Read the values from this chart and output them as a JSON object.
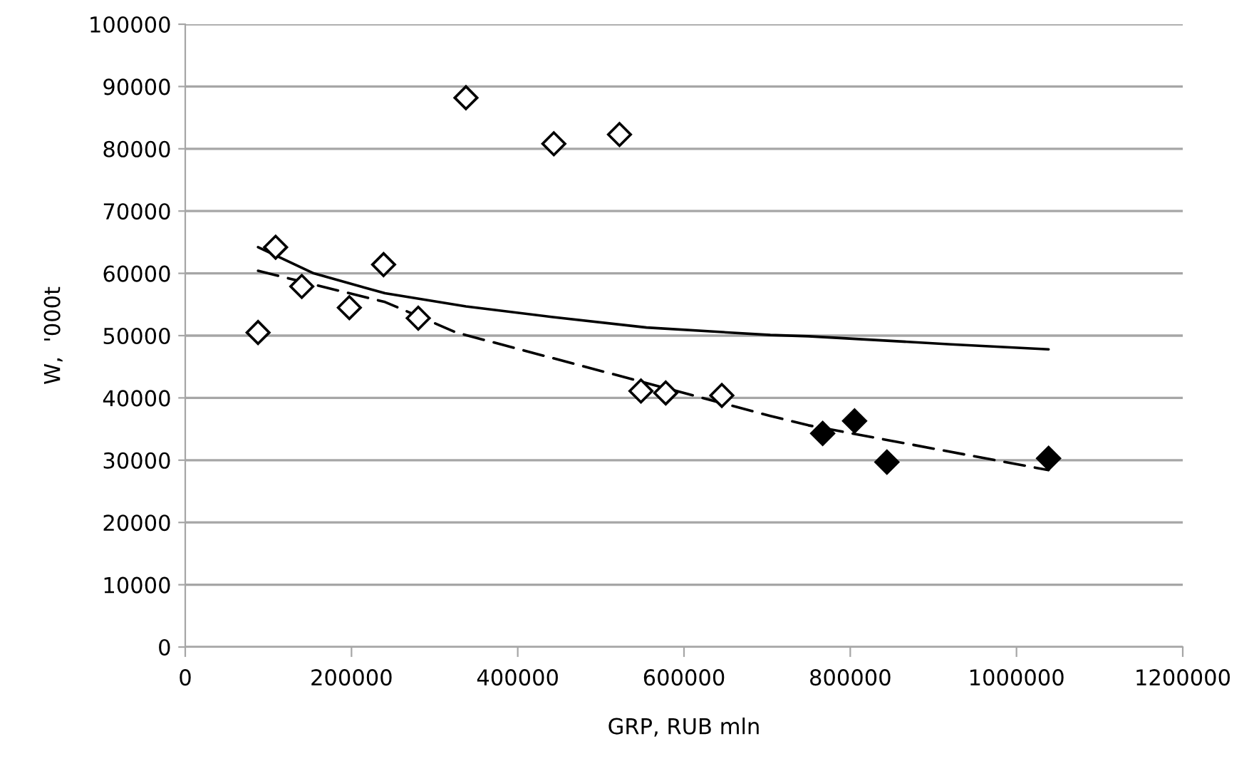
{
  "chart_data": {
    "type": "scatter",
    "xlabel": "GRP, RUB mln",
    "ylabel": "W,  '000t",
    "xlim": [
      0,
      1200000
    ],
    "ylim": [
      0,
      100000
    ],
    "xticks": [
      0,
      200000,
      400000,
      600000,
      800000,
      1000000,
      1200000
    ],
    "yticks": [
      0,
      10000,
      20000,
      30000,
      40000,
      50000,
      60000,
      70000,
      80000,
      90000,
      100000
    ],
    "grid": "y",
    "legend": false,
    "series": [
      {
        "marker": "diamond",
        "color": "#ffffff",
        "x": [
          87600,
          108700,
          140200,
          197400,
          238600,
          280300,
          337700,
          443400,
          522400,
          548200,
          578000,
          645500
        ],
        "values": [
          50500,
          64200,
          57900,
          54500,
          61400,
          52800,
          88200,
          80800,
          82300,
          41100,
          40800,
          40400
        ]
      },
      {
        "marker": "diamond",
        "color": "#000000",
        "x": [
          766800,
          805200,
          844100,
          1038600
        ],
        "values": [
          34300,
          36300,
          29700,
          30300
        ]
      },
      {
        "type": "line",
        "color": "#000000",
        "line_style": "solid",
        "x": [
          87600,
          154500,
          240300,
          337700,
          440500,
          554900,
          703900,
          749600,
          921200,
          1038600
        ],
        "values": [
          64200,
          60000,
          56800,
          54700,
          53000,
          51300,
          50100,
          49900,
          48600,
          47800
        ]
      },
      {
        "type": "line",
        "color": "#000000",
        "line_style": "dashed",
        "x": [
          87600,
          240300,
          326100,
          703900,
          749600,
          1038600
        ],
        "values": [
          60400,
          55400,
          50500,
          37100,
          35600,
          28400
        ]
      }
    ]
  }
}
